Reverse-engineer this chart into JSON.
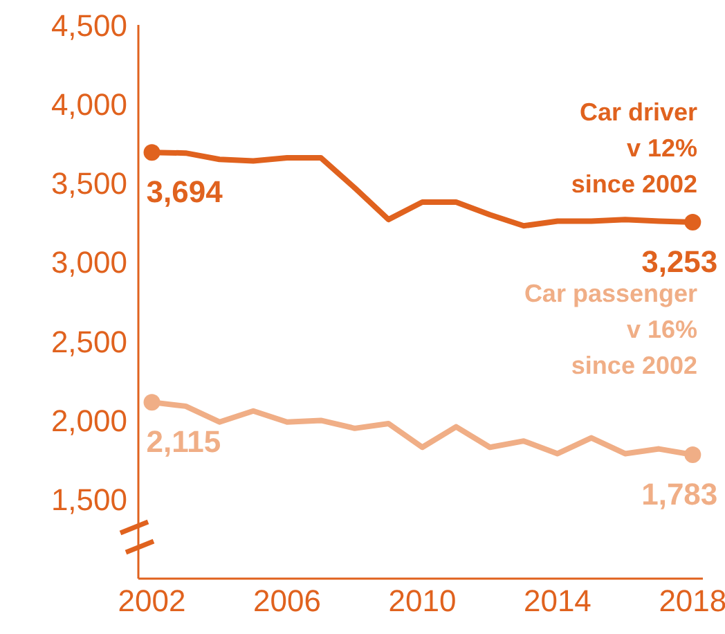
{
  "chart_data": {
    "type": "line",
    "x": [
      2002,
      2003,
      2004,
      2005,
      2006,
      2007,
      2008,
      2009,
      2010,
      2011,
      2012,
      2013,
      2014,
      2015,
      2016,
      2017,
      2018
    ],
    "series": [
      {
        "name": "Car driver",
        "color": "#e0621e",
        "values": [
          3694,
          3690,
          3650,
          3640,
          3660,
          3660,
          3470,
          3270,
          3380,
          3380,
          3300,
          3230,
          3260,
          3260,
          3270,
          3260,
          3253
        ],
        "value_labels": [
          "3,694",
          null,
          null,
          null,
          null,
          null,
          null,
          null,
          null,
          null,
          null,
          null,
          null,
          null,
          null,
          null,
          "3,253"
        ]
      },
      {
        "name": "Car passenger",
        "color": "#f0ae86",
        "values": [
          2115,
          2090,
          1990,
          2060,
          1990,
          2000,
          1950,
          1980,
          1830,
          1960,
          1830,
          1870,
          1790,
          1890,
          1790,
          1820,
          1783
        ],
        "value_labels": [
          "2,115",
          null,
          null,
          null,
          null,
          null,
          null,
          null,
          null,
          null,
          null,
          null,
          null,
          null,
          null,
          null,
          "1,783"
        ]
      }
    ],
    "annotations": [
      "v 12%\nsince 2002",
      "v 16%\nsince 2002"
    ],
    "xlim": [
      2001.6,
      2018.3
    ],
    "xticks": [
      2002,
      2006,
      2010,
      2014,
      2018
    ],
    "ylim": [
      1000,
      4500
    ],
    "yticks": [
      {
        "value": 1500,
        "label": "1,500"
      },
      {
        "value": 2000,
        "label": "2,000"
      },
      {
        "value": 2500,
        "label": "2,500"
      },
      {
        "value": 3000,
        "label": "3,000"
      },
      {
        "value": 3500,
        "label": "3,500"
      },
      {
        "value": 4000,
        "label": "4,000"
      },
      {
        "value": 4500,
        "label": "4,500"
      }
    ],
    "grid": false
  }
}
